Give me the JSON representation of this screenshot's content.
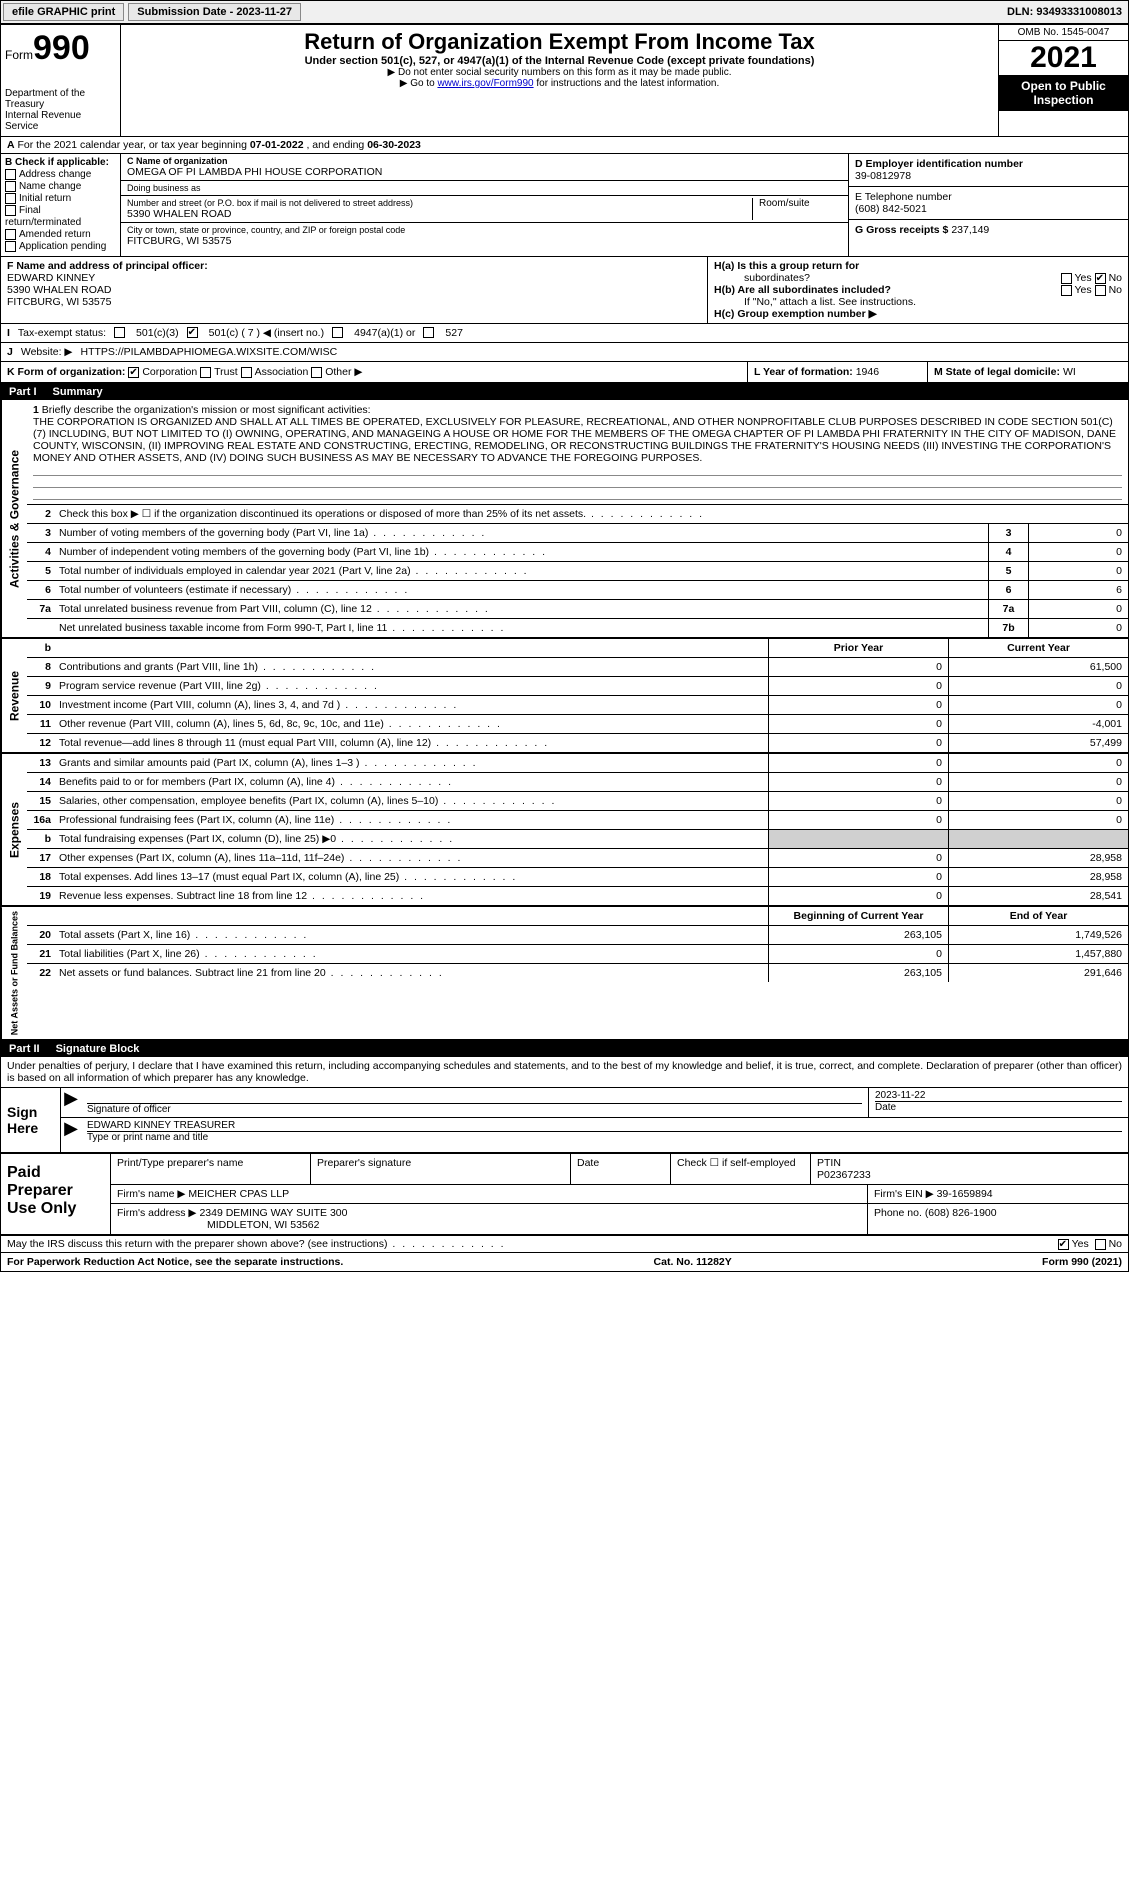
{
  "topbar": {
    "efile_label": "efile GRAPHIC print",
    "submission_label": "Submission Date - 2023-11-27",
    "dln_label": "DLN: 93493331008013"
  },
  "header": {
    "form_word": "Form",
    "form_number": "990",
    "dept": "Department of the Treasury",
    "irs": "Internal Revenue Service",
    "title": "Return of Organization Exempt From Income Tax",
    "subtitle": "Under section 501(c), 527, or 4947(a)(1) of the Internal Revenue Code (except private foundations)",
    "note1": "▶ Do not enter social security numbers on this form as it may be made public.",
    "note2_pre": "▶ Go to ",
    "note2_link": "www.irs.gov/Form990",
    "note2_post": " for instructions and the latest information.",
    "omb": "OMB No. 1545-0047",
    "year": "2021",
    "inspection": "Open to Public Inspection"
  },
  "row_a": {
    "label": "A",
    "text_pre": "For the 2021 calendar year, or tax year beginning ",
    "begin": "07-01-2022",
    "text_mid": " , and ending ",
    "end": "06-30-2023"
  },
  "section_b": {
    "label": "B Check if applicable:",
    "items": [
      "Address change",
      "Name change",
      "Initial return",
      "Final return/terminated",
      "Amended return",
      "Application pending"
    ]
  },
  "section_c": {
    "name_label": "C Name of organization",
    "name": "OMEGA OF PI LAMBDA PHI HOUSE CORPORATION",
    "dba_label": "Doing business as",
    "dba": "",
    "street_label": "Number and street (or P.O. box if mail is not delivered to street address)",
    "street": "5390 WHALEN ROAD",
    "room_label": "Room/suite",
    "room": "",
    "city_label": "City or town, state or province, country, and ZIP or foreign postal code",
    "city": "FITCBURG, WI  53575"
  },
  "section_d": {
    "ein_label": "D Employer identification number",
    "ein": "39-0812978",
    "phone_label": "E Telephone number",
    "phone": "(608) 842-5021",
    "gross_label": "G Gross receipts $",
    "gross": "237,149"
  },
  "section_f": {
    "label": "F  Name and address of principal officer:",
    "name": "EDWARD KINNEY",
    "street": "5390 WHALEN ROAD",
    "city": "FITCBURG, WI  53575"
  },
  "section_h": {
    "ha_label": "H(a)  Is this a group return for",
    "ha_sub": "subordinates?",
    "ha_yes": "Yes",
    "ha_no": "No",
    "hb_label": "H(b)  Are all subordinates included?",
    "hb_note": "If \"No,\" attach a list. See instructions.",
    "hc_label": "H(c)  Group exemption number ▶"
  },
  "row_i": {
    "label": "I",
    "text": "Tax-exempt status:",
    "opts": [
      "501(c)(3)",
      "501(c) ( 7 ) ◀ (insert no.)",
      "4947(a)(1) or",
      "527"
    ]
  },
  "row_j": {
    "label": "J",
    "text": "Website: ▶",
    "value": "HTTPS://PILAMBDAPHIOMEGA.WIXSITE.COM/WISC"
  },
  "row_klm": {
    "k_label": "K Form of organization:",
    "k_opts": [
      "Corporation",
      "Trust",
      "Association",
      "Other ▶"
    ],
    "l_label": "L Year of formation:",
    "l_value": "1946",
    "m_label": "M State of legal domicile:",
    "m_value": "WI"
  },
  "part1": {
    "label": "Part I",
    "title": "Summary"
  },
  "mission": {
    "num": "1",
    "label": "Briefly describe the organization's mission or most significant activities:",
    "text": "THE CORPORATION IS ORGANIZED AND SHALL AT ALL TIMES BE OPERATED, EXCLUSIVELY FOR PLEASURE, RECREATIONAL, AND OTHER NONPROFITABLE CLUB PURPOSES DESCRIBED IN CODE SECTION 501(C)(7) INCLUDING, BUT NOT LIMITED TO (I) OWNING, OPERATING, AND MANAGEING A HOUSE OR HOME FOR THE MEMBERS OF THE OMEGA CHAPTER OF PI LAMBDA PHI FRATERNITY IN THE CITY OF MADISON, DANE COUNTY, WISCONSIN, (II) IMPROVING REAL ESTATE AND CONSTRUCTING, ERECTING, REMODELING, OR RECONSTRUCTING BUILDINGS THE FRATERNITY'S HOUSING NEEDS (III) INVESTING THE CORPORATION'S MONEY AND OTHER ASSETS, AND (IV) DOING SUCH BUSINESS AS MAY BE NECESSARY TO ADVANCE THE FOREGOING PURPOSES."
  },
  "activities_rows": [
    {
      "num": "2",
      "text": "Check this box ▶ ☐ if the organization discontinued its operations or disposed of more than 25% of its net assets.",
      "box": "",
      "val": ""
    },
    {
      "num": "3",
      "text": "Number of voting members of the governing body (Part VI, line 1a)",
      "box": "3",
      "val": "0"
    },
    {
      "num": "4",
      "text": "Number of independent voting members of the governing body (Part VI, line 1b)",
      "box": "4",
      "val": "0"
    },
    {
      "num": "5",
      "text": "Total number of individuals employed in calendar year 2021 (Part V, line 2a)",
      "box": "5",
      "val": "0"
    },
    {
      "num": "6",
      "text": "Total number of volunteers (estimate if necessary)",
      "box": "6",
      "val": "6"
    },
    {
      "num": "7a",
      "text": "Total unrelated business revenue from Part VIII, column (C), line 12",
      "box": "7a",
      "val": "0"
    },
    {
      "num": "",
      "text": "Net unrelated business taxable income from Form 990-T, Part I, line 11",
      "box": "7b",
      "val": "0"
    }
  ],
  "revenue_header": {
    "b": "b",
    "prior": "Prior Year",
    "curr": "Current Year"
  },
  "revenue_rows": [
    {
      "num": "8",
      "text": "Contributions and grants (Part VIII, line 1h)",
      "prior": "0",
      "curr": "61,500"
    },
    {
      "num": "9",
      "text": "Program service revenue (Part VIII, line 2g)",
      "prior": "0",
      "curr": "0"
    },
    {
      "num": "10",
      "text": "Investment income (Part VIII, column (A), lines 3, 4, and 7d )",
      "prior": "0",
      "curr": "0"
    },
    {
      "num": "11",
      "text": "Other revenue (Part VIII, column (A), lines 5, 6d, 8c, 9c, 10c, and 11e)",
      "prior": "0",
      "curr": "-4,001"
    },
    {
      "num": "12",
      "text": "Total revenue—add lines 8 through 11 (must equal Part VIII, column (A), line 12)",
      "prior": "0",
      "curr": "57,499"
    }
  ],
  "expenses_rows": [
    {
      "num": "13",
      "text": "Grants and similar amounts paid (Part IX, column (A), lines 1–3 )",
      "prior": "0",
      "curr": "0"
    },
    {
      "num": "14",
      "text": "Benefits paid to or for members (Part IX, column (A), line 4)",
      "prior": "0",
      "curr": "0"
    },
    {
      "num": "15",
      "text": "Salaries, other compensation, employee benefits (Part IX, column (A), lines 5–10)",
      "prior": "0",
      "curr": "0"
    },
    {
      "num": "16a",
      "text": "Professional fundraising fees (Part IX, column (A), line 11e)",
      "prior": "0",
      "curr": "0"
    },
    {
      "num": "b",
      "text": "Total fundraising expenses (Part IX, column (D), line 25) ▶0",
      "prior": "",
      "curr": "",
      "shaded": true
    },
    {
      "num": "17",
      "text": "Other expenses (Part IX, column (A), lines 11a–11d, 11f–24e)",
      "prior": "0",
      "curr": "28,958"
    },
    {
      "num": "18",
      "text": "Total expenses. Add lines 13–17 (must equal Part IX, column (A), line 25)",
      "prior": "0",
      "curr": "28,958"
    },
    {
      "num": "19",
      "text": "Revenue less expenses. Subtract line 18 from line 12",
      "prior": "0",
      "curr": "28,541"
    }
  ],
  "netassets_header": {
    "prior": "Beginning of Current Year",
    "curr": "End of Year"
  },
  "netassets_rows": [
    {
      "num": "20",
      "text": "Total assets (Part X, line 16)",
      "prior": "263,105",
      "curr": "1,749,526"
    },
    {
      "num": "21",
      "text": "Total liabilities (Part X, line 26)",
      "prior": "0",
      "curr": "1,457,880"
    },
    {
      "num": "22",
      "text": "Net assets or fund balances. Subtract line 21 from line 20",
      "prior": "263,105",
      "curr": "291,646"
    }
  ],
  "vtabs": {
    "activities": "Activities & Governance",
    "revenue": "Revenue",
    "expenses": "Expenses",
    "netassets": "Net Assets or Fund Balances"
  },
  "part2": {
    "label": "Part II",
    "title": "Signature Block",
    "penalty": "Under penalties of perjury, I declare that I have examined this return, including accompanying schedules and statements, and to the best of my knowledge and belief, it is true, correct, and complete. Declaration of preparer (other than officer) is based on all information of which preparer has any knowledge."
  },
  "sign": {
    "left": "Sign Here",
    "sig_label": "Signature of officer",
    "date_label": "Date",
    "date_value": "2023-11-22",
    "name": "EDWARD KINNEY TREASURER",
    "name_label": "Type or print name and title"
  },
  "prep": {
    "left": "Paid Preparer Use Only",
    "print_label": "Print/Type preparer's name",
    "sig_label": "Preparer's signature",
    "date_label": "Date",
    "check_label": "Check ☐ if self-employed",
    "ptin_label": "PTIN",
    "ptin": "P02367233",
    "firm_name_label": "Firm's name    ▶",
    "firm_name": "MEICHER CPAS LLP",
    "firm_ein_label": "Firm's EIN ▶",
    "firm_ein": "39-1659894",
    "firm_addr_label": "Firm's address ▶",
    "firm_addr1": "2349 DEMING WAY SUITE 300",
    "firm_addr2": "MIDDLETON, WI  53562",
    "phone_label": "Phone no.",
    "phone": "(608) 826-1900"
  },
  "discuss": {
    "text": "May the IRS discuss this return with the preparer shown above? (see instructions)",
    "yes": "Yes",
    "no": "No"
  },
  "footer": {
    "left": "For Paperwork Reduction Act Notice, see the separate instructions.",
    "mid": "Cat. No. 11282Y",
    "right": "Form 990 (2021)"
  },
  "colors": {
    "black": "#000000",
    "white": "#ffffff",
    "shaded": "#d0d0d0",
    "link": "#0000cc",
    "topbar_bg": "#f0f0f0",
    "btn_bg": "#e8e8e8"
  }
}
